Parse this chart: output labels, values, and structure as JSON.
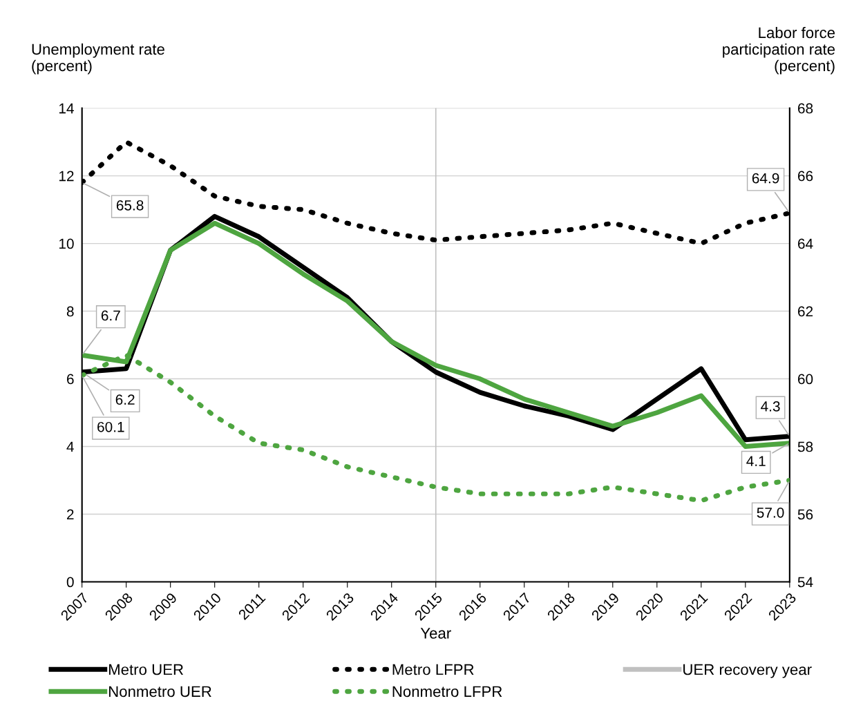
{
  "chart_data": {
    "type": "line",
    "xlabel": "Year",
    "ylabel": "Unemployment rate\n(percent)",
    "y2label": "Labor force\nparticipation rate\n(percent)",
    "categories": [
      "2007",
      "2008",
      "2009",
      "2010",
      "2011",
      "2012",
      "2013",
      "2014",
      "2015",
      "2016",
      "2017",
      "2018",
      "2019",
      "2020",
      "2021",
      "2022",
      "2023"
    ],
    "ylim": [
      0,
      14
    ],
    "yticks": [
      0,
      2,
      4,
      6,
      8,
      10,
      12,
      14
    ],
    "y2lim": [
      54,
      68
    ],
    "y2ticks": [
      54,
      56,
      58,
      60,
      62,
      64,
      66,
      68
    ],
    "grid": "y",
    "legend": "bottom",
    "marker": "none",
    "series": [
      {
        "name": "Metro UER",
        "color": "#000000",
        "line_style": "solid",
        "values": [
          6.2,
          6.3,
          9.8,
          10.8,
          10.2,
          9.3,
          8.4,
          7.1,
          6.2,
          5.6,
          5.2,
          4.9,
          4.5,
          5.4,
          6.3,
          4.2,
          4.3
        ],
        "value_labels": [
          "6.2",
          null,
          null,
          null,
          null,
          null,
          null,
          null,
          null,
          null,
          null,
          null,
          null,
          null,
          null,
          null,
          "4.3"
        ]
      },
      {
        "name": "Nonmetro UER",
        "color": "#4ea540",
        "line_style": "solid",
        "values": [
          6.7,
          6.5,
          9.8,
          10.6,
          10.0,
          9.1,
          8.3,
          7.1,
          6.4,
          6.0,
          5.4,
          5.0,
          4.6,
          5.0,
          5.5,
          4.0,
          4.1
        ],
        "value_labels": [
          "6.7",
          null,
          null,
          null,
          null,
          null,
          null,
          null,
          null,
          null,
          null,
          null,
          null,
          null,
          null,
          null,
          "4.1"
        ]
      },
      {
        "name": "Metro LFPR",
        "color": "#000000",
        "line_style": "dotted",
        "axis": "y2",
        "values": [
          65.8,
          67.0,
          66.3,
          65.4,
          65.1,
          65.0,
          64.6,
          64.3,
          64.1,
          64.2,
          64.3,
          64.4,
          64.6,
          64.3,
          64.0,
          64.6,
          64.9
        ],
        "value_labels": [
          "65.8",
          null,
          null,
          null,
          null,
          null,
          null,
          null,
          null,
          null,
          null,
          null,
          null,
          null,
          null,
          null,
          "64.9"
        ]
      },
      {
        "name": "Nonmetro LFPR",
        "color": "#4ea540",
        "line_style": "dotted",
        "axis": "y2",
        "values": [
          60.1,
          60.7,
          59.9,
          58.9,
          58.1,
          57.9,
          57.4,
          57.1,
          56.8,
          56.6,
          56.6,
          56.6,
          56.8,
          56.6,
          56.4,
          56.8,
          57.0
        ],
        "value_labels": [
          "60.1",
          null,
          null,
          null,
          null,
          null,
          null,
          null,
          null,
          null,
          null,
          null,
          null,
          null,
          null,
          null,
          "57.0"
        ]
      }
    ],
    "ref_lines": [
      {
        "axis": "x",
        "value": "2015",
        "label": "UER recovery year",
        "color": "#c0c0c0",
        "line_style": "solid"
      }
    ]
  }
}
